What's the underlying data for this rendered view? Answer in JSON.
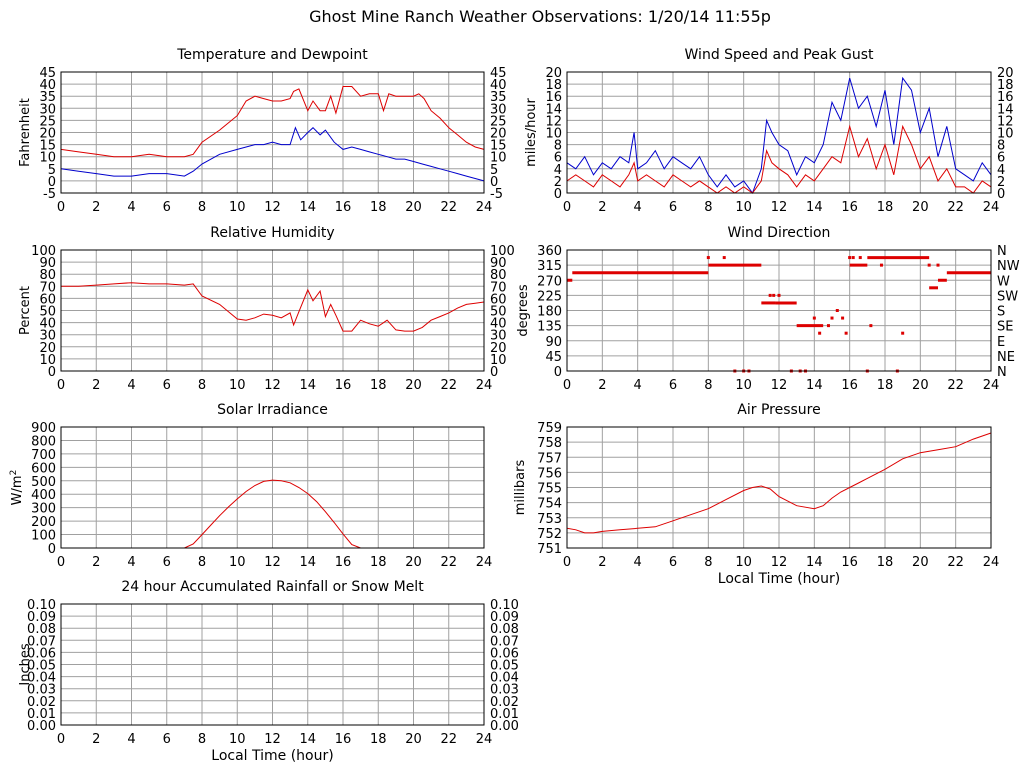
{
  "page_title": "Ghost Mine Ranch Weather Observations: 1/20/14 11:55p",
  "colors": {
    "temperature": "#dd0000",
    "dewpoint": "#0000cc",
    "grid": "#a0a0a0",
    "frame": "#000000"
  },
  "chart_data": [
    {
      "id": "temp",
      "type": "line",
      "title": "Temperature and Dewpoint",
      "ylabel": "Fahrenheit",
      "xlabel": "",
      "xlim": [
        0,
        24
      ],
      "ylim": [
        -5,
        45
      ],
      "x_ticks": [
        "0",
        "2",
        "4",
        "6",
        "8",
        "10",
        "12",
        "14",
        "16",
        "18",
        "20",
        "22",
        "24"
      ],
      "y_ticks": [
        "-5",
        "0",
        "5",
        "10",
        "15",
        "20",
        "25",
        "30",
        "35",
        "40",
        "45"
      ],
      "right_axis": true,
      "grid": true,
      "series": [
        {
          "color": "#dd0000",
          "x": [
            0,
            1,
            2,
            3,
            4,
            5,
            6,
            7,
            7.5,
            8,
            9,
            10,
            10.5,
            11,
            11.5,
            12,
            12.5,
            13,
            13.2,
            13.5,
            14,
            14.3,
            14.7,
            15,
            15.3,
            15.6,
            16,
            16.5,
            17,
            17.5,
            18,
            18.3,
            18.6,
            19,
            19.5,
            20,
            20.3,
            20.6,
            21,
            21.5,
            22,
            22.5,
            23,
            23.5,
            24
          ],
          "y": [
            13,
            12,
            11,
            10,
            10,
            11,
            10,
            10,
            11,
            16,
            21,
            27,
            33,
            35,
            34,
            33,
            33,
            34,
            37,
            38,
            29,
            33,
            29,
            29,
            35,
            28,
            39,
            39,
            35,
            36,
            36,
            29,
            36,
            35,
            35,
            35,
            36,
            34,
            29,
            26,
            22,
            19,
            16,
            14,
            13
          ]
        },
        {
          "color": "#0000cc",
          "x": [
            0,
            1,
            2,
            3,
            4,
            5,
            6,
            7,
            7.5,
            8,
            9,
            10,
            10.5,
            11,
            11.5,
            12,
            12.5,
            13,
            13.3,
            13.6,
            14,
            14.3,
            14.7,
            15,
            15.5,
            16,
            16.5,
            17,
            17.5,
            18,
            18.5,
            19,
            19.5,
            20,
            20.5,
            21,
            21.5,
            22,
            22.5,
            23,
            23.5,
            24
          ],
          "y": [
            5,
            4,
            3,
            2,
            2,
            3,
            3,
            2,
            4,
            7,
            11,
            13,
            14,
            15,
            15,
            16,
            15,
            15,
            22,
            17,
            20,
            22,
            19,
            21,
            16,
            13,
            14,
            13,
            12,
            11,
            10,
            9,
            9,
            8,
            7,
            6,
            5,
            4,
            3,
            2,
            1,
            0
          ]
        }
      ]
    },
    {
      "id": "wind",
      "type": "line",
      "title": "Wind Speed and Peak Gust",
      "ylabel": "miles/hour",
      "xlabel": "",
      "xlim": [
        0,
        24
      ],
      "ylim": [
        0,
        20
      ],
      "x_ticks": [
        "0",
        "2",
        "4",
        "6",
        "8",
        "10",
        "12",
        "14",
        "16",
        "18",
        "20",
        "22",
        "24"
      ],
      "y_ticks": [
        "0",
        "2",
        "4",
        "6",
        "8",
        "10",
        "12",
        "14",
        "16",
        "18",
        "20"
      ],
      "right_axis": true,
      "grid": true,
      "series": [
        {
          "color": "#0000cc",
          "x": [
            0,
            0.5,
            1,
            1.5,
            2,
            2.5,
            3,
            3.5,
            3.8,
            4,
            4.5,
            5,
            5.5,
            6,
            6.5,
            7,
            7.5,
            8,
            8.5,
            9,
            9.5,
            10,
            10.5,
            11,
            11.3,
            11.6,
            12,
            12.5,
            13,
            13.5,
            14,
            14.5,
            15,
            15.5,
            16,
            16.5,
            17,
            17.5,
            18,
            18.5,
            19,
            19.5,
            20,
            20.5,
            21,
            21.5,
            22,
            22.5,
            23,
            23.5,
            24
          ],
          "y": [
            5,
            4,
            6,
            3,
            5,
            4,
            6,
            5,
            10,
            4,
            5,
            7,
            4,
            6,
            5,
            4,
            6,
            3,
            1,
            3,
            1,
            2,
            0,
            4,
            12,
            10,
            8,
            7,
            3,
            6,
            5,
            8,
            15,
            12,
            19,
            14,
            16,
            11,
            17,
            8,
            19,
            17,
            10,
            14,
            6,
            11,
            4,
            3,
            2,
            5,
            3
          ]
        },
        {
          "color": "#dd0000",
          "x": [
            0,
            0.5,
            1,
            1.5,
            2,
            2.5,
            3,
            3.5,
            3.8,
            4,
            4.5,
            5,
            5.5,
            6,
            6.5,
            7,
            7.5,
            8,
            8.5,
            9,
            9.5,
            10,
            10.5,
            11,
            11.3,
            11.6,
            12,
            12.5,
            13,
            13.5,
            14,
            14.5,
            15,
            15.5,
            16,
            16.5,
            17,
            17.5,
            18,
            18.5,
            19,
            19.5,
            20,
            20.5,
            21,
            21.5,
            22,
            22.5,
            23,
            23.5,
            24
          ],
          "y": [
            2,
            3,
            2,
            1,
            3,
            2,
            1,
            3,
            5,
            2,
            3,
            2,
            1,
            3,
            2,
            1,
            2,
            1,
            0,
            1,
            0,
            1,
            0,
            2,
            7,
            5,
            4,
            3,
            1,
            3,
            2,
            4,
            6,
            5,
            11,
            6,
            9,
            4,
            8,
            3,
            11,
            8,
            4,
            6,
            2,
            4,
            1,
            1,
            0,
            2,
            1
          ]
        }
      ]
    },
    {
      "id": "humidity",
      "type": "line",
      "title": "Relative Humidity",
      "ylabel": "Percent",
      "xlabel": "",
      "xlim": [
        0,
        24
      ],
      "ylim": [
        0,
        100
      ],
      "x_ticks": [
        "0",
        "2",
        "4",
        "6",
        "8",
        "10",
        "12",
        "14",
        "16",
        "18",
        "20",
        "22",
        "24"
      ],
      "y_ticks": [
        "0",
        "10",
        "20",
        "30",
        "40",
        "50",
        "60",
        "70",
        "80",
        "90",
        "100"
      ],
      "right_axis": true,
      "grid": true,
      "series": [
        {
          "color": "#dd0000",
          "x": [
            0,
            1,
            2,
            3,
            4,
            5,
            6,
            7,
            7.5,
            8,
            9,
            10,
            10.5,
            11,
            11.5,
            12,
            12.5,
            13,
            13.2,
            13.5,
            14,
            14.3,
            14.7,
            15,
            15.3,
            15.6,
            16,
            16.5,
            17,
            17.5,
            18,
            18.5,
            19,
            19.5,
            20,
            20.5,
            21,
            21.5,
            22,
            22.5,
            23,
            23.5,
            24
          ],
          "y": [
            70,
            70,
            71,
            72,
            73,
            72,
            72,
            71,
            72,
            62,
            55,
            43,
            42,
            44,
            47,
            46,
            44,
            48,
            38,
            49,
            67,
            58,
            66,
            45,
            55,
            46,
            33,
            33,
            42,
            39,
            37,
            42,
            34,
            33,
            33,
            36,
            42,
            45,
            48,
            52,
            55,
            56,
            57
          ]
        }
      ]
    },
    {
      "id": "direction",
      "type": "scatter",
      "title": "Wind Direction",
      "ylabel": "degrees",
      "xlabel": "",
      "xlim": [
        0,
        24
      ],
      "ylim": [
        0,
        360
      ],
      "x_ticks": [
        "0",
        "2",
        "4",
        "6",
        "8",
        "10",
        "12",
        "14",
        "16",
        "18",
        "20",
        "22",
        "24"
      ],
      "y_ticks": [
        "0",
        "45",
        "90",
        "135",
        "180",
        "225",
        "270",
        "315",
        "360"
      ],
      "right_labels": [
        "N",
        "NE",
        "E",
        "SE",
        "S",
        "SW",
        "W",
        "NW",
        "N"
      ],
      "grid": true,
      "series": [
        {
          "color": "#dd0000",
          "segments": [
            [
              0,
              0.3,
              270
            ],
            [
              0.3,
              8,
              292.5
            ],
            [
              8,
              11,
              315
            ],
            [
              11,
              11.8,
              202.5
            ],
            [
              11.8,
              13,
              202.5
            ],
            [
              13,
              14.5,
              135
            ],
            [
              16,
              17,
              315
            ],
            [
              17,
              20.5,
              337.5
            ],
            [
              20.5,
              21,
              247.5
            ],
            [
              21,
              21.5,
              270
            ],
            [
              21.5,
              24,
              292.5
            ]
          ],
          "x": [
            8,
            8.9,
            9.5,
            10,
            10.3,
            11.5,
            11.7,
            12,
            12.7,
            13.2,
            13.5,
            14,
            14.3,
            14.8,
            15,
            15.3,
            15.6,
            15.8,
            16,
            16.2,
            16.6,
            17,
            17.2,
            17.8,
            18.7,
            19,
            20.5,
            21
          ],
          "y": [
            337.5,
            337.5,
            0,
            0,
            0,
            225,
            225,
            225,
            0,
            0,
            0,
            157.5,
            112.5,
            135,
            157.5,
            180,
            157.5,
            112.5,
            337.5,
            337.5,
            337.5,
            0,
            135,
            315,
            0,
            112.5,
            315,
            315
          ]
        }
      ]
    },
    {
      "id": "solar",
      "type": "line",
      "title": "Solar Irradiance",
      "ylabel": "W/m",
      "ylabel_sup": "2",
      "xlabel": "",
      "xlim": [
        0,
        24
      ],
      "ylim": [
        0,
        900
      ],
      "x_ticks": [
        "0",
        "2",
        "4",
        "6",
        "8",
        "10",
        "12",
        "14",
        "16",
        "18",
        "20",
        "22",
        "24"
      ],
      "y_ticks": [
        "0",
        "100",
        "200",
        "300",
        "400",
        "500",
        "600",
        "700",
        "800",
        "900"
      ],
      "right_axis": false,
      "grid": true,
      "series": [
        {
          "color": "#dd0000",
          "x": [
            0,
            7,
            7.5,
            8,
            8.5,
            9,
            9.5,
            10,
            10.5,
            11,
            11.5,
            12,
            12.5,
            13,
            13.5,
            14,
            14.5,
            15,
            15.5,
            16,
            16.5,
            17,
            24
          ],
          "y": [
            0,
            0,
            30,
            100,
            170,
            240,
            305,
            365,
            420,
            465,
            495,
            505,
            500,
            485,
            450,
            405,
            345,
            270,
            190,
            105,
            25,
            0,
            0
          ]
        }
      ]
    },
    {
      "id": "pressure",
      "type": "line",
      "title": "Air Pressure",
      "ylabel": "millibars",
      "xlabel": "Local Time (hour)",
      "xlim": [
        0,
        24
      ],
      "ylim": [
        751,
        759
      ],
      "x_ticks": [
        "0",
        "2",
        "4",
        "6",
        "8",
        "10",
        "12",
        "14",
        "16",
        "18",
        "20",
        "22",
        "24"
      ],
      "y_ticks": [
        "751",
        "752",
        "753",
        "754",
        "755",
        "756",
        "757",
        "758",
        "759"
      ],
      "right_axis": false,
      "grid": true,
      "series": [
        {
          "color": "#dd0000",
          "x": [
            0,
            0.5,
            1,
            1.5,
            2,
            3,
            4,
            5,
            6,
            7,
            8,
            9,
            10,
            10.5,
            11,
            11.5,
            12,
            13,
            14,
            14.5,
            15,
            15.5,
            16,
            16.5,
            17,
            18,
            19,
            20,
            21,
            22,
            23,
            24
          ],
          "y": [
            752.3,
            752.2,
            752,
            752,
            752.1,
            752.2,
            752.3,
            752.4,
            752.8,
            753.2,
            753.6,
            754.2,
            754.8,
            755,
            755.1,
            754.9,
            754.4,
            753.8,
            753.6,
            753.8,
            754.3,
            754.7,
            755,
            755.3,
            755.6,
            756.2,
            756.9,
            757.3,
            757.5,
            757.7,
            758.2,
            758.6
          ]
        }
      ]
    },
    {
      "id": "rain",
      "type": "line",
      "title": "24 hour Accumulated Rainfall or Snow Melt",
      "ylabel": "Inches",
      "xlabel": "Local Time (hour)",
      "xlim": [
        0,
        24
      ],
      "ylim": [
        0,
        0.1
      ],
      "x_ticks": [
        "0",
        "2",
        "4",
        "6",
        "8",
        "10",
        "12",
        "14",
        "16",
        "18",
        "20",
        "22",
        "24"
      ],
      "y_ticks": [
        "0.00",
        "0.01",
        "0.02",
        "0.03",
        "0.04",
        "0.05",
        "0.06",
        "0.07",
        "0.08",
        "0.09",
        "0.10"
      ],
      "right_axis": true,
      "grid": true,
      "series": [
        {
          "color": "#dd0000",
          "x": [
            0,
            24
          ],
          "y": [
            0,
            0
          ]
        }
      ]
    }
  ]
}
